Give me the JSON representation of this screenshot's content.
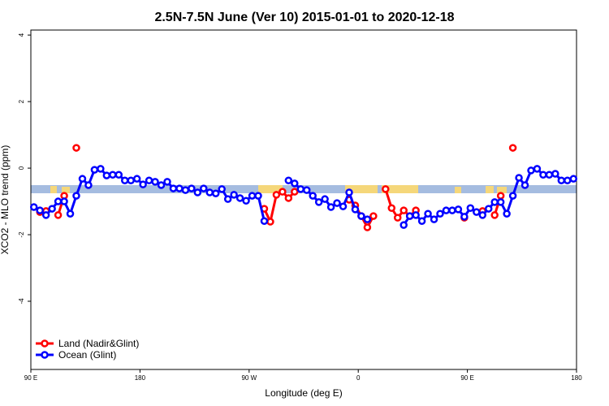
{
  "chart_data": {
    "type": "line",
    "title": "2.5N-7.5N June (Ver 10)   2015-01-01 to 2020-12-18",
    "x_label": "Longitude (deg E)",
    "y_label": "XCO2 - MLO trend (ppm)",
    "xlim": [
      90,
      540
    ],
    "ylim": [
      -6.05,
      4.15
    ],
    "xticks": [
      {
        "value": 90,
        "label": "90 E"
      },
      180,
      {
        "value": 270,
        "label": "90 W"
      },
      {
        "value": 360,
        "label": "0"
      },
      {
        "value": 450,
        "label": "90 E"
      },
      {
        "value": 540,
        "label": "180"
      }
    ],
    "yticks": [
      -4,
      -2,
      0,
      2,
      4
    ],
    "legend": "bottom-left",
    "x": [
      92.5,
      97.5,
      102.5,
      107.5,
      112.5,
      117.5,
      122.5,
      127.5,
      132.5,
      137.5,
      142.5,
      147.5,
      152.5,
      157.5,
      162.5,
      167.5,
      172.5,
      177.5,
      182.5,
      187.5,
      192.5,
      197.5,
      202.5,
      207.5,
      212.5,
      217.5,
      222.5,
      227.5,
      232.5,
      237.5,
      242.5,
      247.5,
      252.5,
      257.5,
      262.5,
      267.5,
      272.5,
      277.5,
      282.5,
      287.5,
      292.5,
      297.5,
      302.5,
      307.5,
      312.5,
      317.5,
      322.5,
      327.5,
      332.5,
      337.5,
      342.5,
      347.5,
      352.5,
      357.5,
      362.5,
      367.5,
      372.5,
      377.5,
      382.5,
      387.5,
      392.5,
      397.5,
      402.5,
      407.5,
      412.5,
      417.5,
      422.5,
      427.5,
      432.5,
      437.5,
      442.5,
      447.5,
      452.5,
      457.5,
      462.5,
      467.5,
      472.5,
      477.5,
      482.5,
      487.5,
      492.5,
      497.5,
      502.5,
      507.5,
      512.5,
      517.5,
      522.5,
      527.5,
      532.5,
      537.5
    ],
    "series": [
      {
        "name": "Land (Nadir&Glint)",
        "color": "#ff0000",
        "values": [
          null,
          -1.32,
          -1.29,
          null,
          -1.41,
          -0.83,
          null,
          0.61,
          null,
          null,
          null,
          null,
          null,
          null,
          null,
          null,
          null,
          null,
          null,
          null,
          null,
          null,
          null,
          null,
          null,
          null,
          null,
          null,
          null,
          null,
          null,
          null,
          null,
          null,
          null,
          null,
          null,
          null,
          -1.22,
          -1.61,
          -0.8,
          -0.71,
          -0.9,
          -0.71,
          null,
          null,
          null,
          null,
          null,
          null,
          null,
          null,
          -0.95,
          -1.12,
          -1.44,
          -1.78,
          -1.44,
          null,
          -0.63,
          -1.2,
          -1.49,
          -1.27,
          -1.44,
          -1.27,
          null,
          null,
          null,
          null,
          null,
          null,
          null,
          -1.49,
          null,
          null,
          -1.29,
          null,
          -1.41,
          -0.83,
          null,
          0.61,
          null,
          null,
          null,
          null,
          null,
          null,
          null,
          null,
          null,
          null
        ]
      },
      {
        "name": "Ocean (Glint)",
        "color": "#0000ff",
        "values": [
          -1.17,
          -1.27,
          -1.41,
          -1.22,
          -1.0,
          -1.0,
          -1.37,
          -0.83,
          -0.32,
          -0.51,
          -0.05,
          -0.02,
          -0.22,
          -0.2,
          -0.2,
          -0.37,
          -0.37,
          -0.32,
          -0.49,
          -0.37,
          -0.41,
          -0.51,
          -0.41,
          -0.61,
          -0.61,
          -0.66,
          -0.61,
          -0.73,
          -0.61,
          -0.73,
          -0.76,
          -0.63,
          -0.93,
          -0.8,
          -0.9,
          -0.98,
          -0.83,
          -0.83,
          -1.59,
          null,
          null,
          null,
          -0.37,
          -0.46,
          -0.63,
          -0.66,
          -0.83,
          -1.02,
          -0.93,
          -1.17,
          -1.05,
          -1.15,
          -0.73,
          -1.24,
          -1.44,
          -1.54,
          null,
          null,
          null,
          null,
          null,
          -1.71,
          -1.44,
          -1.41,
          -1.59,
          -1.37,
          -1.54,
          -1.37,
          -1.27,
          -1.27,
          -1.24,
          -1.46,
          -1.2,
          -1.32,
          -1.41,
          -1.22,
          -1.02,
          -1.02,
          -1.37,
          -0.83,
          -0.29,
          -0.51,
          -0.07,
          -0.02,
          -0.2,
          -0.2,
          -0.17,
          -0.37,
          -0.37,
          -0.32
        ]
      }
    ]
  }
}
